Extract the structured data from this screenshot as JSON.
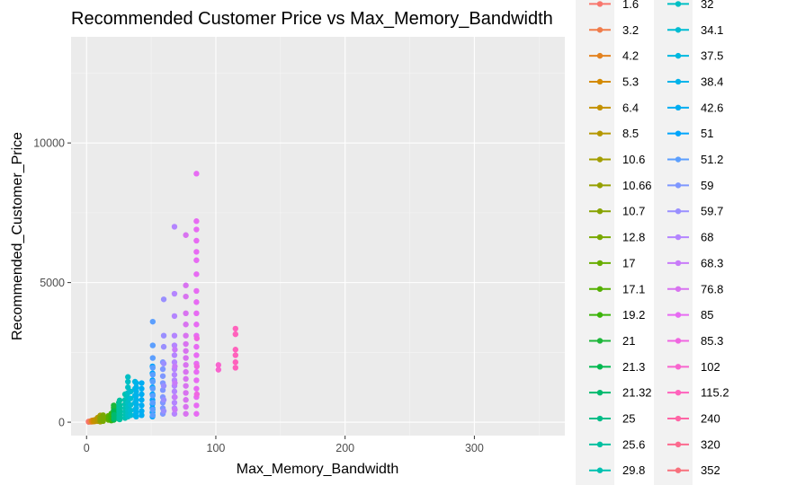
{
  "chart_data": {
    "type": "scatter",
    "title": "Recommended Customer Price vs Max_Memory_Bandwidth",
    "xlabel": "Max_Memory_Bandwidth",
    "ylabel": "Recommended_Customer_Price",
    "xlim": [
      -12,
      370
    ],
    "ylim": [
      -480,
      13800
    ],
    "x_ticks": [
      0,
      100,
      200,
      300
    ],
    "x_tick_labels": [
      "0",
      "100",
      "200",
      "300"
    ],
    "y_ticks": [
      0,
      5000,
      10000
    ],
    "y_tick_labels": [
      "0",
      "5000",
      "10000"
    ],
    "grid": true,
    "background": "#ebebeb",
    "legend": {
      "position": "right",
      "columns": 2,
      "column1": [
        "1.6",
        "3.2",
        "4.2",
        "5.3",
        "6.4",
        "8.5",
        "10.6",
        "10.66",
        "10.7",
        "12.8",
        "17",
        "17.1",
        "19.2",
        "21",
        "21.3",
        "21.32",
        "25",
        "25.6",
        "29.8"
      ],
      "column2": [
        "32",
        "34.1",
        "37.5",
        "38.4",
        "42.6",
        "51",
        "51.2",
        "59",
        "59.7",
        "68",
        "68.3",
        "76.8",
        "85",
        "85.3",
        "102",
        "115.2",
        "240",
        "320",
        "352"
      ],
      "colors1": [
        "#f8766d",
        "#f07c4a",
        "#e3821f",
        "#d48a00",
        "#c49100",
        "#b59700",
        "#a39e00",
        "#95a000",
        "#87a300",
        "#79a800",
        "#68ad00",
        "#54b000",
        "#3cb40a",
        "#1eb73a",
        "#00b84f",
        "#00ba6e",
        "#00bd88",
        "#00c0a0",
        "#00c1b0"
      ],
      "colors2": [
        "#00bfc4",
        "#00bcd2",
        "#00b8df",
        "#00b3ea",
        "#00adf2",
        "#00a5fc",
        "#5c9ffe",
        "#7e97ff",
        "#9a8fff",
        "#b485ff",
        "#c87bf9",
        "#d873f0",
        "#e76bf3",
        "#f066e1",
        "#f865ce",
        "#ff62bc",
        "#ff65a5",
        "#fc6a8e",
        "#f8707c"
      ]
    },
    "series": [
      {
        "name": "1.6",
        "color": "#f8766d",
        "points": [
          [
            1.6,
            10
          ],
          [
            1.6,
            25
          ]
        ]
      },
      {
        "name": "3.2",
        "color": "#f07c4a",
        "points": [
          [
            3.2,
            15
          ],
          [
            3.2,
            40
          ]
        ]
      },
      {
        "name": "4.2",
        "color": "#e3821f",
        "points": [
          [
            4.2,
            20
          ],
          [
            4.2,
            60
          ]
        ]
      },
      {
        "name": "5.3",
        "color": "#d48a00",
        "points": [
          [
            5.3,
            25
          ],
          [
            5.3,
            70
          ]
        ]
      },
      {
        "name": "6.4",
        "color": "#c49100",
        "points": [
          [
            6.4,
            30
          ],
          [
            6.4,
            80
          ]
        ]
      },
      {
        "name": "8.5",
        "color": "#b59700",
        "points": [
          [
            8.5,
            40
          ],
          [
            8.5,
            110
          ],
          [
            8.5,
            160
          ]
        ]
      },
      {
        "name": "10.6",
        "color": "#a39e00",
        "points": [
          [
            10.6,
            20
          ],
          [
            10.6,
            60
          ],
          [
            10.6,
            110
          ],
          [
            10.6,
            180
          ],
          [
            10.6,
            240
          ]
        ]
      },
      {
        "name": "10.66",
        "color": "#95a000",
        "points": [
          [
            10.66,
            40
          ],
          [
            10.66,
            130
          ]
        ]
      },
      {
        "name": "10.7",
        "color": "#87a300",
        "points": [
          [
            10.7,
            70
          ],
          [
            10.7,
            150
          ]
        ]
      },
      {
        "name": "12.8",
        "color": "#79a800",
        "points": [
          [
            12.8,
            40
          ],
          [
            12.8,
            90
          ],
          [
            12.8,
            140
          ],
          [
            12.8,
            200
          ],
          [
            12.8,
            250
          ]
        ]
      },
      {
        "name": "17",
        "color": "#68ad00",
        "points": [
          [
            17,
            80
          ],
          [
            17,
            150
          ],
          [
            17,
            230
          ]
        ]
      },
      {
        "name": "17.1",
        "color": "#54b000",
        "points": [
          [
            17.1,
            120
          ],
          [
            17.1,
            190
          ]
        ]
      },
      {
        "name": "19.2",
        "color": "#3cb40a",
        "points": [
          [
            19.2,
            60
          ],
          [
            19.2,
            120
          ],
          [
            19.2,
            180
          ],
          [
            19.2,
            240
          ],
          [
            19.2,
            310
          ]
        ]
      },
      {
        "name": "21",
        "color": "#1eb73a",
        "points": [
          [
            21,
            80
          ],
          [
            21,
            160
          ],
          [
            21,
            250
          ],
          [
            21,
            340
          ],
          [
            21,
            430
          ],
          [
            21,
            520
          ],
          [
            21,
            600
          ]
        ]
      },
      {
        "name": "21.3",
        "color": "#00b84f",
        "points": [
          [
            21.3,
            100
          ],
          [
            21.3,
            200
          ],
          [
            21.3,
            300
          ],
          [
            21.3,
            400
          ]
        ]
      },
      {
        "name": "21.32",
        "color": "#00ba6e",
        "points": [
          [
            21.32,
            140
          ],
          [
            21.32,
            260
          ]
        ]
      },
      {
        "name": "25",
        "color": "#00bd88",
        "points": [
          [
            25,
            120
          ],
          [
            25,
            200
          ],
          [
            25,
            300
          ],
          [
            25,
            400
          ],
          [
            25,
            500
          ],
          [
            25,
            600
          ],
          [
            25,
            700
          ]
        ]
      },
      {
        "name": "25.6",
        "color": "#00c0a0",
        "points": [
          [
            25.6,
            100
          ],
          [
            25.6,
            180
          ],
          [
            25.6,
            260
          ],
          [
            25.6,
            340
          ],
          [
            25.6,
            420
          ],
          [
            25.6,
            520
          ],
          [
            25.6,
            620
          ],
          [
            25.6,
            780
          ]
        ]
      },
      {
        "name": "29.8",
        "color": "#00c1b0",
        "points": [
          [
            29.8,
            150
          ],
          [
            29.8,
            260
          ],
          [
            29.8,
            380
          ],
          [
            29.8,
            500
          ],
          [
            29.8,
            640
          ],
          [
            29.8,
            800
          ],
          [
            29.8,
            1000
          ]
        ]
      },
      {
        "name": "32",
        "color": "#00bfc4",
        "points": [
          [
            32,
            200
          ],
          [
            32,
            300
          ],
          [
            32,
            420
          ],
          [
            32,
            550
          ],
          [
            32,
            700
          ],
          [
            32,
            880
          ],
          [
            32,
            1050
          ],
          [
            32,
            1250
          ],
          [
            32,
            1450
          ],
          [
            32,
            1620
          ]
        ]
      },
      {
        "name": "34.1",
        "color": "#00bcd2",
        "points": [
          [
            34.1,
            250
          ],
          [
            34.1,
            420
          ],
          [
            34.1,
            620
          ],
          [
            34.1,
            850
          ],
          [
            34.1,
            1100
          ]
        ]
      },
      {
        "name": "37.5",
        "color": "#00b8df",
        "points": [
          [
            37.5,
            250
          ],
          [
            37.5,
            450
          ],
          [
            37.5,
            700
          ],
          [
            37.5,
            950
          ],
          [
            37.5,
            1200
          ],
          [
            37.5,
            1450
          ]
        ]
      },
      {
        "name": "38.4",
        "color": "#00b3ea",
        "points": [
          [
            38.4,
            200
          ],
          [
            38.4,
            350
          ],
          [
            38.4,
            500
          ],
          [
            38.4,
            650
          ],
          [
            38.4,
            800
          ],
          [
            38.4,
            950
          ],
          [
            38.4,
            1100
          ],
          [
            38.4,
            1250
          ],
          [
            38.4,
            1400
          ]
        ]
      },
      {
        "name": "42.6",
        "color": "#00adf2",
        "points": [
          [
            42.6,
            250
          ],
          [
            42.6,
            400
          ],
          [
            42.6,
            600
          ],
          [
            42.6,
            800
          ],
          [
            42.6,
            1000
          ],
          [
            42.6,
            1200
          ],
          [
            42.6,
            1400
          ]
        ]
      },
      {
        "name": "51",
        "color": "#00a5fc",
        "points": [
          [
            51,
            200
          ],
          [
            51,
            350
          ],
          [
            51,
            500
          ],
          [
            51,
            650
          ],
          [
            51,
            800
          ],
          [
            51,
            1000
          ],
          [
            51,
            1250
          ],
          [
            51,
            1500
          ],
          [
            51,
            1750
          ],
          [
            51,
            2000
          ]
        ]
      },
      {
        "name": "51.2",
        "color": "#5c9ffe",
        "points": [
          [
            51.2,
            250
          ],
          [
            51.2,
            450
          ],
          [
            51.2,
            700
          ],
          [
            51.2,
            950
          ],
          [
            51.2,
            1200
          ],
          [
            51.2,
            1450
          ],
          [
            51.2,
            1700
          ],
          [
            51.2,
            1950
          ],
          [
            51.2,
            2300
          ],
          [
            51.2,
            2750
          ],
          [
            51.2,
            3600
          ]
        ]
      },
      {
        "name": "59",
        "color": "#7e97ff",
        "points": [
          [
            59,
            300
          ],
          [
            59,
            500
          ],
          [
            59,
            700
          ],
          [
            59,
            900
          ],
          [
            59,
            1150
          ],
          [
            59,
            1400
          ],
          [
            59,
            1650
          ],
          [
            59,
            1900
          ],
          [
            59,
            2150
          ]
        ]
      },
      {
        "name": "59.7",
        "color": "#9a8fff",
        "points": [
          [
            59.7,
            400
          ],
          [
            59.7,
            800
          ],
          [
            59.7,
            1300
          ],
          [
            59.7,
            2100
          ],
          [
            59.7,
            2700
          ],
          [
            59.7,
            3100
          ],
          [
            59.7,
            4400
          ]
        ]
      },
      {
        "name": "68",
        "color": "#b485ff",
        "points": [
          [
            68,
            300
          ],
          [
            68,
            500
          ],
          [
            68,
            700
          ],
          [
            68,
            900
          ],
          [
            68,
            1100
          ],
          [
            68,
            1300
          ],
          [
            68,
            1500
          ],
          [
            68,
            1700
          ],
          [
            68,
            1900
          ],
          [
            68,
            2150
          ],
          [
            68,
            2400
          ],
          [
            68,
            2750
          ],
          [
            68,
            3100
          ],
          [
            68,
            3800
          ],
          [
            68,
            4600
          ],
          [
            68,
            7000
          ]
        ]
      },
      {
        "name": "68.3",
        "color": "#c87bf9",
        "points": [
          [
            68.3,
            450
          ],
          [
            68.3,
            900
          ],
          [
            68.3,
            1400
          ],
          [
            68.3,
            2000
          ],
          [
            68.3,
            2600
          ]
        ]
      },
      {
        "name": "76.8",
        "color": "#d873f0",
        "points": [
          [
            76.8,
            300
          ],
          [
            76.8,
            550
          ],
          [
            76.8,
            800
          ],
          [
            76.8,
            1050
          ],
          [
            76.8,
            1300
          ],
          [
            76.8,
            1550
          ],
          [
            76.8,
            1800
          ],
          [
            76.8,
            2050
          ],
          [
            76.8,
            2300
          ],
          [
            76.8,
            2550
          ],
          [
            76.8,
            2800
          ],
          [
            76.8,
            3100
          ],
          [
            76.8,
            3500
          ],
          [
            76.8,
            3900
          ],
          [
            76.8,
            4500
          ],
          [
            76.8,
            4900
          ],
          [
            76.8,
            6700
          ]
        ]
      },
      {
        "name": "85",
        "color": "#e76bf3",
        "points": [
          [
            85,
            300
          ],
          [
            85,
            600
          ],
          [
            85,
            900
          ],
          [
            85,
            1200
          ],
          [
            85,
            1500
          ],
          [
            85,
            1800
          ],
          [
            85,
            2100
          ],
          [
            85,
            2400
          ],
          [
            85,
            2700
          ],
          [
            85,
            3100
          ],
          [
            85,
            3500
          ],
          [
            85,
            3900
          ],
          [
            85,
            4300
          ],
          [
            85,
            4700
          ],
          [
            85,
            5300
          ],
          [
            85,
            5800
          ],
          [
            85,
            6100
          ],
          [
            85,
            6500
          ],
          [
            85,
            6900
          ],
          [
            85,
            7200
          ],
          [
            85,
            8900
          ]
        ]
      },
      {
        "name": "85.3",
        "color": "#f066e1",
        "points": [
          [
            85.3,
            1000
          ],
          [
            85.3,
            2000
          ],
          [
            85.3,
            3000
          ]
        ]
      },
      {
        "name": "102",
        "color": "#f865ce",
        "points": [
          [
            102,
            1880
          ],
          [
            102,
            2050
          ]
        ]
      },
      {
        "name": "115.2",
        "color": "#ff62bc",
        "points": [
          [
            115.2,
            1950
          ],
          [
            115.2,
            2150
          ],
          [
            115.2,
            2400
          ],
          [
            115.2,
            2600
          ],
          [
            115.2,
            3150
          ],
          [
            115.2,
            3350
          ]
        ]
      },
      {
        "name": "240",
        "color": "#ff65a5",
        "points": []
      },
      {
        "name": "320",
        "color": "#fc6a8e",
        "points": []
      },
      {
        "name": "352",
        "color": "#f8707c",
        "points": []
      }
    ]
  }
}
